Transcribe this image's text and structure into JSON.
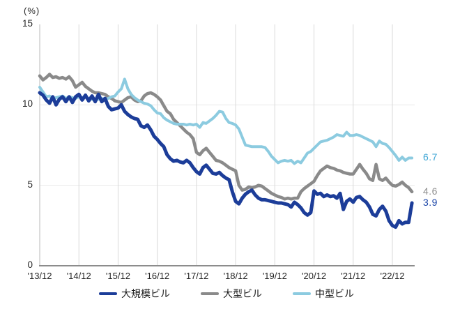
{
  "chart_data": {
    "type": "line",
    "title": "",
    "unit_label": "(%)",
    "ylabel": "(%)",
    "xlabel": "",
    "ylim": [
      0,
      15
    ],
    "y_ticks": [
      0,
      5,
      10,
      15
    ],
    "x_tick_labels": [
      "'13/12",
      "'14/12",
      "'15/12",
      "'16/12",
      "'17/12",
      "'18/12",
      "'19/12",
      "'20/12",
      "'21/12",
      "'22/12"
    ],
    "x_start": "2013/12",
    "x_end": "2023/06",
    "x_interval": "monthly",
    "grid": {
      "vertical": true,
      "horizontal": true,
      "legend_position": "bottom"
    },
    "colors": {
      "vertical_grid": "#d9d9d9",
      "horizontal_grid": "#eaeaea",
      "y_axis_line": "#c4c4c4",
      "x_axis_line": "#8c8c8c",
      "tick_text": "#262626"
    },
    "series": [
      {
        "name": "大規模ビル",
        "color": "#1C3D99",
        "end_label": "3.9",
        "end_label_color": "#1C46A8",
        "stroke_width": 5,
        "values": [
          10.75,
          10.6,
          10.3,
          10.1,
          10.5,
          10.0,
          10.35,
          10.5,
          10.2,
          10.5,
          10.15,
          10.5,
          10.65,
          10.3,
          10.6,
          10.25,
          10.55,
          10.2,
          10.65,
          10.2,
          10.4,
          9.9,
          9.7,
          9.75,
          9.8,
          10.0,
          9.6,
          9.4,
          9.25,
          9.15,
          9.1,
          8.7,
          8.6,
          8.75,
          8.45,
          8.05,
          7.85,
          7.6,
          7.4,
          6.9,
          6.65,
          6.5,
          6.55,
          6.45,
          6.4,
          6.55,
          6.4,
          6.1,
          5.85,
          5.7,
          6.1,
          6.25,
          6.0,
          5.75,
          5.7,
          5.8,
          5.6,
          5.45,
          5.35,
          4.6,
          4.0,
          3.85,
          4.2,
          4.45,
          4.6,
          4.7,
          4.4,
          4.2,
          4.1,
          4.1,
          4.05,
          4.0,
          3.95,
          3.9,
          3.9,
          3.85,
          3.8,
          3.65,
          3.95,
          3.8,
          3.6,
          3.3,
          3.15,
          3.3,
          4.65,
          4.45,
          4.5,
          4.3,
          4.4,
          4.3,
          4.35,
          4.2,
          4.5,
          3.5,
          4.0,
          4.15,
          3.95,
          4.25,
          4.3,
          4.1,
          3.95,
          3.65,
          3.2,
          3.1,
          3.5,
          3.7,
          3.4,
          2.8,
          2.5,
          2.4,
          2.8,
          2.6,
          2.7,
          2.7,
          3.9
        ]
      },
      {
        "name": "大型ビル",
        "color": "#8A8A8A",
        "end_label": "4.6",
        "end_label_color": "#8F8F8F",
        "stroke_width": 4.5,
        "values": [
          11.8,
          11.55,
          11.7,
          11.9,
          11.7,
          11.75,
          11.65,
          11.7,
          11.6,
          11.75,
          11.5,
          11.1,
          11.25,
          11.4,
          11.15,
          11.0,
          10.85,
          10.75,
          10.75,
          10.7,
          10.65,
          10.5,
          10.4,
          10.25,
          10.2,
          10.15,
          10.3,
          10.45,
          10.5,
          10.3,
          10.2,
          10.25,
          10.55,
          10.7,
          10.75,
          10.65,
          10.5,
          10.3,
          9.95,
          9.6,
          9.45,
          9.1,
          8.9,
          8.7,
          8.5,
          8.3,
          8.15,
          7.9,
          7.05,
          6.9,
          7.15,
          7.3,
          7.05,
          6.8,
          6.55,
          6.5,
          6.4,
          6.25,
          6.1,
          6.0,
          5.9,
          5.0,
          4.7,
          4.75,
          4.9,
          4.85,
          4.9,
          5.0,
          4.95,
          4.8,
          4.65,
          4.5,
          4.4,
          4.3,
          4.25,
          4.15,
          4.2,
          4.15,
          4.2,
          4.2,
          4.6,
          4.8,
          4.95,
          5.1,
          5.25,
          5.6,
          5.9,
          6.05,
          6.2,
          6.1,
          6.05,
          5.95,
          5.9,
          5.8,
          5.75,
          5.7,
          5.7,
          6.0,
          6.3,
          6.0,
          5.75,
          5.4,
          5.3,
          6.3,
          5.4,
          5.3,
          5.45,
          5.2,
          5.0,
          4.95,
          5.05,
          5.2,
          5.0,
          4.85,
          4.6
        ]
      },
      {
        "name": "中型ビル",
        "color": "#8CCBE0",
        "end_label": "6.7",
        "end_label_color": "#3FA6D5",
        "stroke_width": 4,
        "values": [
          11.1,
          10.8,
          10.5,
          10.55,
          10.4,
          10.45,
          10.5,
          10.55,
          10.4,
          10.5,
          10.45,
          10.4,
          10.5,
          10.45,
          10.5,
          10.4,
          10.35,
          10.3,
          10.35,
          10.4,
          10.35,
          10.4,
          10.5,
          10.55,
          10.8,
          11.0,
          11.6,
          11.0,
          10.65,
          10.45,
          10.3,
          10.2,
          10.1,
          10.05,
          9.95,
          9.7,
          9.5,
          9.45,
          9.2,
          9.05,
          8.95,
          8.85,
          8.8,
          8.8,
          8.8,
          8.75,
          8.8,
          8.75,
          8.8,
          8.6,
          8.9,
          8.85,
          9.0,
          9.15,
          9.35,
          9.6,
          9.55,
          9.15,
          8.9,
          8.85,
          8.75,
          8.5,
          8.0,
          7.5,
          7.45,
          7.4,
          7.4,
          7.4,
          7.4,
          7.35,
          7.1,
          6.8,
          6.6,
          6.4,
          6.5,
          6.55,
          6.5,
          6.55,
          6.35,
          6.5,
          6.4,
          6.7,
          7.0,
          7.1,
          7.3,
          7.5,
          7.7,
          7.75,
          7.8,
          7.9,
          8.0,
          8.15,
          8.1,
          8.05,
          8.3,
          8.1,
          8.1,
          8.15,
          8.1,
          8.0,
          7.9,
          7.8,
          7.7,
          7.4,
          7.75,
          7.6,
          7.55,
          7.35,
          7.1,
          6.85,
          6.55,
          6.75,
          6.55,
          6.7,
          6.7
        ]
      }
    ],
    "draw_order": [
      1,
      2,
      0
    ]
  },
  "legend": {
    "items": [
      {
        "label": "大規模ビル"
      },
      {
        "label": "大型ビル"
      },
      {
        "label": "中型ビル"
      }
    ]
  }
}
